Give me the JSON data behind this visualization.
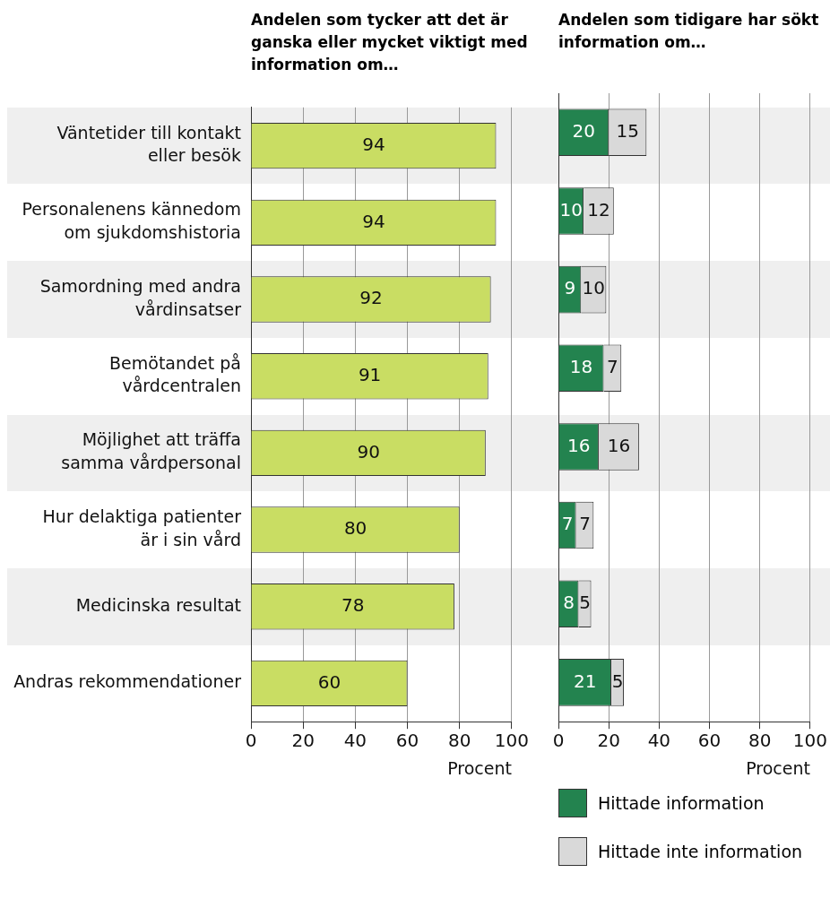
{
  "chart_data": [
    {
      "type": "bar",
      "orientation": "horizontal",
      "title": "Andelen som tycker att det är ganska eller mycket viktigt med information om…",
      "categories": [
        "Väntetider till kontakt eller besök",
        "Personalenens kännedom om sjukdomshistoria",
        "Samordning med andra vårdinsatser",
        "Bemötandet på vårdcentralen",
        "Möjlighet att träffa samma vårdpersonal",
        "Hur delaktiga patienter är i sin vård",
        "Medicinska resultat",
        "Andras rekommendationer"
      ],
      "values": [
        94,
        94,
        92,
        91,
        90,
        80,
        78,
        60
      ],
      "color": "#c9dd63",
      "xlim": [
        0,
        100
      ],
      "xticks": [
        0,
        20,
        40,
        60,
        80,
        100
      ],
      "xlabel": "Procent",
      "grid": "x",
      "data_labels": true
    },
    {
      "type": "bar",
      "orientation": "horizontal",
      "stacked": true,
      "title": "Andelen som tidigare har sökt information om…",
      "categories": [
        null,
        null,
        null,
        null,
        null,
        null,
        null,
        null
      ],
      "series": [
        {
          "name": "Hittade information",
          "color": "#23834f",
          "values": [
            20,
            10,
            9,
            18,
            16,
            7,
            8,
            21
          ]
        },
        {
          "name": "Hittade inte information",
          "color": "#d9d9d9",
          "values": [
            15,
            12,
            10,
            7,
            16,
            7,
            5,
            5
          ]
        }
      ],
      "xlim": [
        0,
        100
      ],
      "xticks": [
        0,
        20,
        40,
        60,
        80,
        100
      ],
      "xlabel": "Procent",
      "grid": "x",
      "data_labels": true,
      "tick_labels": "x",
      "legend": "bottom"
    }
  ]
}
